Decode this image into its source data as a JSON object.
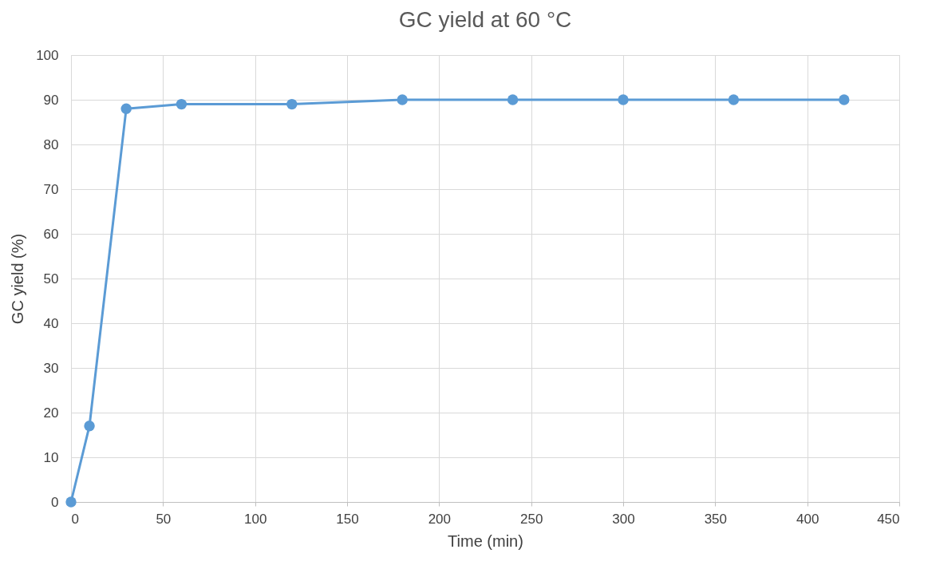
{
  "chart_data": {
    "type": "line",
    "title": "GC yield at 60 °C",
    "xlabel": "Time (min)",
    "ylabel": "GC yield (%)",
    "x": [
      0,
      10,
      30,
      60,
      120,
      180,
      240,
      300,
      360,
      420
    ],
    "series": [
      {
        "color": "#5b9bd5",
        "values": [
          0,
          17,
          88,
          89,
          89,
          90,
          90,
          90,
          90,
          90
        ]
      }
    ],
    "xlim": [
      0,
      450
    ],
    "xticks": [
      0,
      50,
      100,
      150,
      200,
      250,
      300,
      350,
      400,
      450
    ],
    "ylim": [
      0,
      100
    ],
    "yticks": [
      0,
      10,
      20,
      30,
      40,
      50,
      60,
      70,
      80,
      90,
      100
    ],
    "grid": true,
    "marker": "circle",
    "line_style": "solid"
  }
}
